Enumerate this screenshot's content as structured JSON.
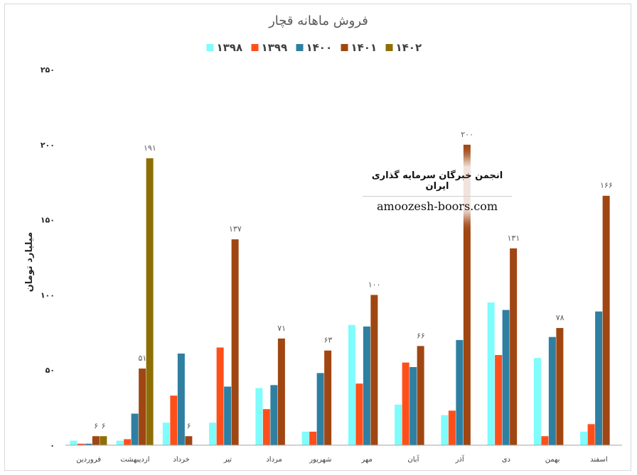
{
  "chart_data": {
    "type": "bar",
    "title": "فروش ماهانه قچار",
    "ylabel": "میلیارد تومان",
    "ylim": [
      0,
      250
    ],
    "yticks": [
      "۰",
      "۵۰",
      "۱۰۰",
      "۱۵۰",
      "۲۰۰",
      "۲۵۰"
    ],
    "yticks_values": [
      0,
      50,
      100,
      150,
      200,
      250
    ],
    "grid": false,
    "legend_position": "top",
    "categories": [
      "فروردین",
      "اردیبهشت",
      "خرداد",
      "تیر",
      "مرداد",
      "شهریور",
      "مهر",
      "آبان",
      "آذر",
      "دی",
      "بهمن",
      "اسفند"
    ],
    "series": [
      {
        "name": "۱۳۹۸",
        "color": "#7ffcfc",
        "values": [
          3,
          3,
          15,
          15,
          38,
          9,
          80,
          27,
          20,
          95,
          58,
          9
        ],
        "labels": [
          "",
          "",
          "",
          "",
          "",
          "",
          "",
          "",
          "",
          "",
          "",
          ""
        ]
      },
      {
        "name": "۱۳۹۹",
        "color": "#fe4f1b",
        "values": [
          1,
          4,
          33,
          65,
          24,
          9,
          41,
          55,
          23,
          60,
          6,
          14
        ],
        "labels": [
          "",
          "",
          "",
          "",
          "",
          "",
          "",
          "",
          "",
          "",
          "",
          ""
        ]
      },
      {
        "name": "۱۴۰۰",
        "color": "#2f7fa1",
        "values": [
          1,
          21,
          61,
          39,
          40,
          48,
          79,
          52,
          70,
          90,
          72,
          89
        ],
        "labels": [
          "",
          "",
          "",
          "",
          "",
          "",
          "",
          "",
          "",
          "",
          "",
          ""
        ]
      },
      {
        "name": "۱۴۰۱",
        "color": "#a04612",
        "values": [
          6,
          51,
          6,
          137,
          71,
          63,
          100,
          66,
          200,
          131,
          78,
          166
        ],
        "labels": [
          "۶",
          "۵۱",
          "۶",
          "۱۳۷",
          "۷۱",
          "۶۳",
          "۱۰۰",
          "۶۶",
          "۲۰۰",
          "۱۳۱",
          "۷۸",
          "۱۶۶"
        ]
      },
      {
        "name": "۱۴۰۲",
        "color": "#8d6f05",
        "values": [
          6,
          191,
          null,
          null,
          null,
          null,
          null,
          null,
          null,
          null,
          null,
          null
        ],
        "labels": [
          "۶",
          "۱۹۱",
          "",
          "",
          "",
          "",
          "",
          "",
          "",
          "",
          "",
          ""
        ]
      }
    ]
  },
  "watermark": {
    "line1": "انجمن خبرگان سرمایه گذاری ایران",
    "line2": "amoozesh-boors.com"
  }
}
